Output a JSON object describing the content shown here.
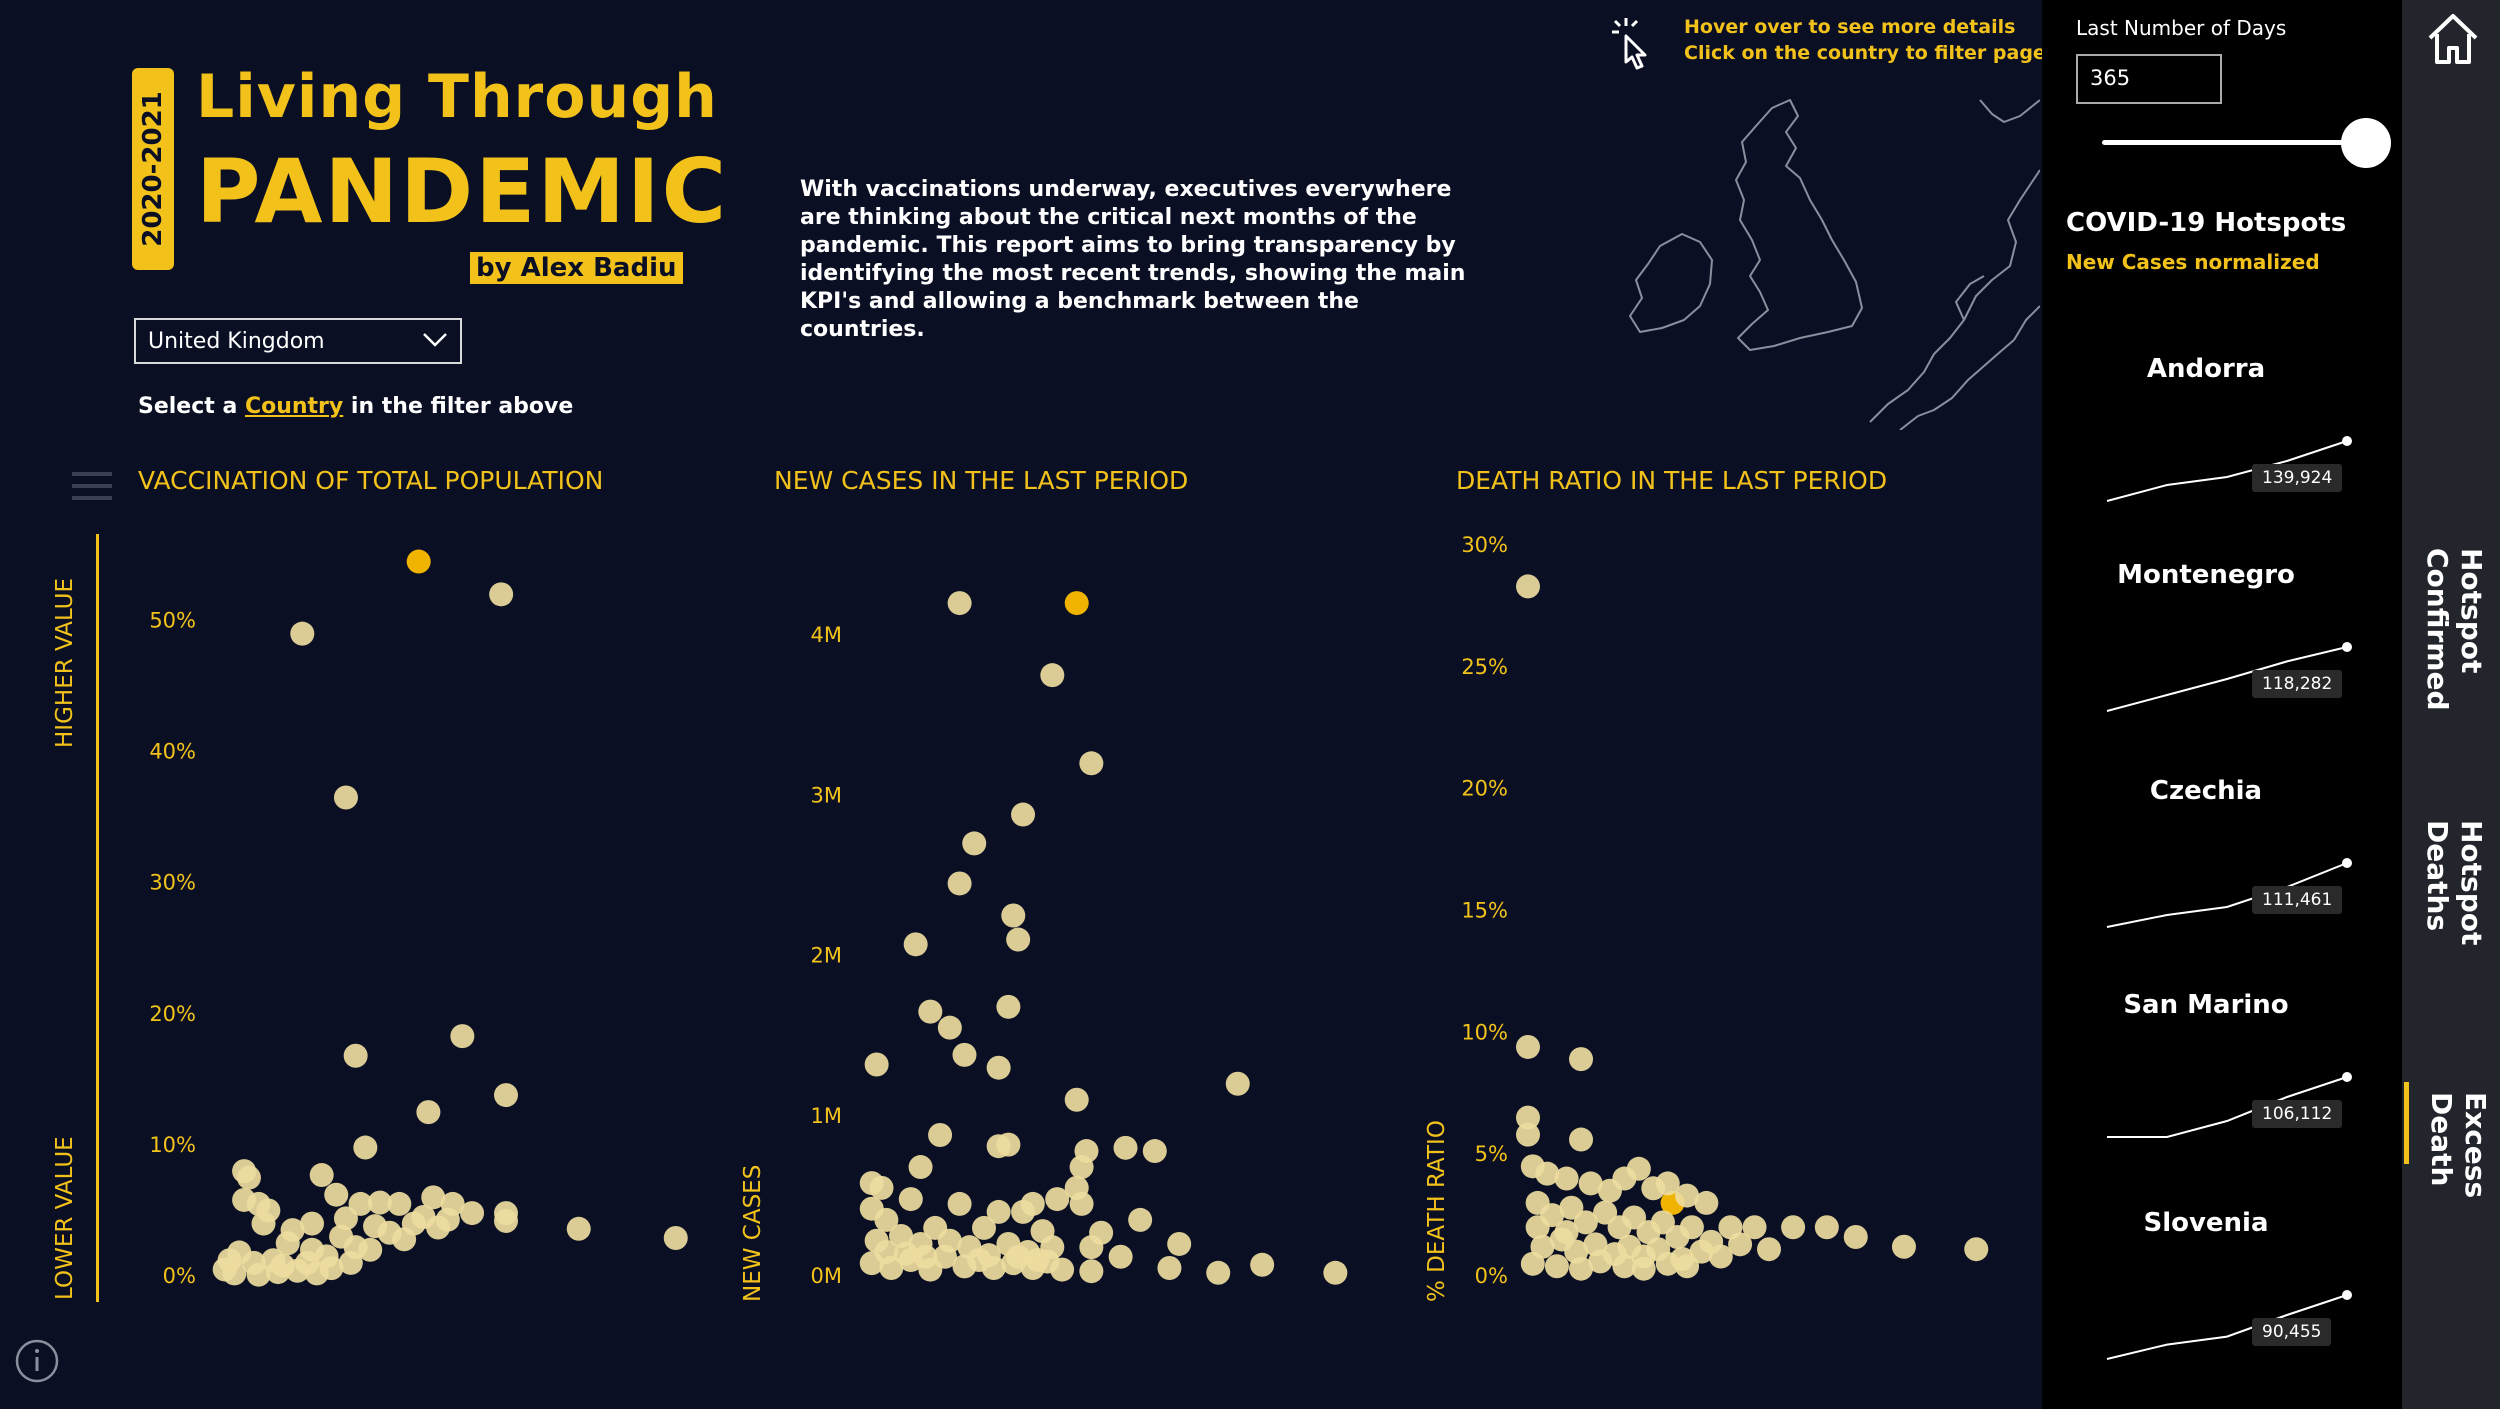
{
  "header": {
    "year": "2020-2021",
    "title_line1": "Living Through",
    "title_line2": "PANDEMIC",
    "author": "by Alex Badiu",
    "description": "With vaccinations underway, executives everywhere are thinking about the critical next months of the pandemic. This report aims to bring transparency by identifying the most recent trends, showing the main KPI's and allowing a benchmark between the countries.",
    "hover_line1": "Hover over to see more details",
    "hover_line2": "Click on the country to filter page"
  },
  "filter": {
    "country": "United Kingdom",
    "hint_prefix": "Select a ",
    "hint_link": "Country",
    "hint_suffix": " in the filter above"
  },
  "side_labels": {
    "higher": "HIGHER VALUE",
    "lower": "LOWER VALUE"
  },
  "colors": {
    "accent": "#f2c21b",
    "point": "#eddc9e",
    "highlight": "#f0b400",
    "background": "#0a0f24"
  },
  "icons": [
    "menu-icon",
    "info-icon",
    "hand-pointer-icon",
    "home-icon",
    "chevron-down-icon"
  ],
  "sidebar": {
    "days_label": "Last Number of Days",
    "days_value": "365",
    "slider_fraction": 1.0,
    "hotspots_title": "COVID-19 Hotspots",
    "hotspots_subtitle": "New Cases normalized",
    "items": [
      {
        "name": "Andorra",
        "value": "139,924",
        "trend": [
          0.25,
          0.45,
          0.55,
          0.75,
          1.0
        ]
      },
      {
        "name": "Montenegro",
        "value": "118,282",
        "trend": [
          0.2,
          0.4,
          0.6,
          0.82,
          1.0
        ]
      },
      {
        "name": "Czechia",
        "value": "111,461",
        "trend": [
          0.2,
          0.35,
          0.45,
          0.7,
          1.0
        ]
      },
      {
        "name": "San Marino",
        "value": "106,112",
        "trend": [
          0.25,
          0.25,
          0.45,
          0.75,
          1.0
        ]
      },
      {
        "name": "Slovenia",
        "value": "90,455",
        "trend": [
          0.2,
          0.38,
          0.48,
          0.75,
          1.0
        ]
      }
    ]
  },
  "nav": {
    "items": [
      "Hotspot Confirmed",
      "Hotspot Deaths",
      "Excess Death"
    ],
    "active": "Excess Death"
  },
  "chart_data": [
    {
      "type": "scatter",
      "title": "VACCINATION OF TOTAL POPULATION",
      "ylabel": "",
      "ylim": [
        0,
        0.55
      ],
      "yticks": [
        0,
        0.1,
        0.2,
        0.3,
        0.4,
        0.5
      ],
      "ytick_labels": [
        "0%",
        "10%",
        "20%",
        "30%",
        "40%",
        "50%"
      ],
      "xlim": [
        0,
        1
      ],
      "points": [
        [
          0.42,
          0.545,
          1
        ],
        [
          0.18,
          0.49,
          0
        ],
        [
          0.59,
          0.52,
          0
        ],
        [
          0.27,
          0.365,
          0
        ],
        [
          0.29,
          0.168,
          0
        ],
        [
          0.51,
          0.183,
          0
        ],
        [
          0.6,
          0.138,
          0
        ],
        [
          0.31,
          0.098,
          0
        ],
        [
          0.44,
          0.125,
          0
        ],
        [
          0.06,
          0.08,
          0
        ],
        [
          0.07,
          0.075,
          0
        ],
        [
          0.22,
          0.077,
          0
        ],
        [
          0.06,
          0.058,
          0
        ],
        [
          0.09,
          0.055,
          0
        ],
        [
          0.11,
          0.05,
          0
        ],
        [
          0.25,
          0.062,
          0
        ],
        [
          0.3,
          0.055,
          0
        ],
        [
          0.34,
          0.056,
          0
        ],
        [
          0.38,
          0.055,
          0
        ],
        [
          0.45,
          0.06,
          0
        ],
        [
          0.49,
          0.055,
          0
        ],
        [
          0.53,
          0.048,
          0
        ],
        [
          0.6,
          0.048,
          0
        ],
        [
          0.6,
          0.042,
          0
        ],
        [
          0.75,
          0.036,
          0
        ],
        [
          0.95,
          0.029,
          0
        ],
        [
          0.1,
          0.04,
          0
        ],
        [
          0.16,
          0.035,
          0
        ],
        [
          0.2,
          0.04,
          0
        ],
        [
          0.27,
          0.044,
          0
        ],
        [
          0.33,
          0.038,
          0
        ],
        [
          0.36,
          0.033,
          0
        ],
        [
          0.41,
          0.04,
          0
        ],
        [
          0.46,
          0.037,
          0
        ],
        [
          0.05,
          0.018,
          0
        ],
        [
          0.08,
          0.01,
          0
        ],
        [
          0.12,
          0.012,
          0
        ],
        [
          0.15,
          0.025,
          0
        ],
        [
          0.19,
          0.01,
          0
        ],
        [
          0.23,
          0.015,
          0
        ],
        [
          0.26,
          0.03,
          0
        ],
        [
          0.29,
          0.022,
          0
        ],
        [
          0.02,
          0.005,
          0
        ],
        [
          0.04,
          0.002,
          0
        ],
        [
          0.09,
          0.001,
          0
        ],
        [
          0.13,
          0.003,
          0
        ],
        [
          0.17,
          0.004,
          0
        ],
        [
          0.21,
          0.002,
          0
        ],
        [
          0.24,
          0.006,
          0
        ],
        [
          0.28,
          0.01,
          0
        ],
        [
          0.32,
          0.02,
          0
        ],
        [
          0.03,
          0.012,
          0
        ],
        [
          0.14,
          0.008,
          0
        ],
        [
          0.2,
          0.02,
          0
        ],
        [
          0.39,
          0.028,
          0
        ],
        [
          0.43,
          0.045,
          0
        ],
        [
          0.48,
          0.043,
          0
        ]
      ]
    },
    {
      "type": "scatter",
      "title": "NEW CASES IN THE LAST PERIOD",
      "ylabel": "NEW CASES",
      "ylim": [
        0,
        4500000
      ],
      "yticks": [
        0,
        1000000,
        2000000,
        3000000,
        4000000
      ],
      "ytick_labels": [
        "0M",
        "1M",
        "2M",
        "3M",
        "4M"
      ],
      "xlim": [
        0,
        1
      ],
      "points": [
        [
          0.2,
          4.2,
          0
        ],
        [
          0.44,
          4.2,
          1
        ],
        [
          0.39,
          3.75,
          0
        ],
        [
          0.47,
          3.2,
          0
        ],
        [
          0.33,
          2.88,
          0
        ],
        [
          0.23,
          2.7,
          0
        ],
        [
          0.2,
          2.45,
          0
        ],
        [
          0.31,
          2.25,
          0
        ],
        [
          0.32,
          2.1,
          0
        ],
        [
          0.11,
          2.07,
          0
        ],
        [
          0.14,
          1.65,
          0
        ],
        [
          0.18,
          1.55,
          0
        ],
        [
          0.3,
          1.68,
          0
        ],
        [
          0.21,
          1.38,
          0
        ],
        [
          0.28,
          1.3,
          0
        ],
        [
          0.03,
          1.32,
          0
        ],
        [
          0.44,
          1.1,
          0
        ],
        [
          0.77,
          1.2,
          0
        ],
        [
          0.16,
          0.88,
          0
        ],
        [
          0.28,
          0.81,
          0
        ],
        [
          0.3,
          0.82,
          0
        ],
        [
          0.46,
          0.78,
          0
        ],
        [
          0.54,
          0.8,
          0
        ],
        [
          0.6,
          0.78,
          0
        ],
        [
          0.12,
          0.68,
          0
        ],
        [
          0.45,
          0.68,
          0
        ],
        [
          0.02,
          0.58,
          0
        ],
        [
          0.04,
          0.55,
          0
        ],
        [
          0.44,
          0.55,
          0
        ],
        [
          0.1,
          0.48,
          0
        ],
        [
          0.2,
          0.45,
          0
        ],
        [
          0.35,
          0.45,
          0
        ],
        [
          0.4,
          0.48,
          0
        ],
        [
          0.45,
          0.45,
          0
        ],
        [
          0.02,
          0.42,
          0
        ],
        [
          0.28,
          0.4,
          0
        ],
        [
          0.33,
          0.4,
          0
        ],
        [
          0.57,
          0.35,
          0
        ],
        [
          0.05,
          0.35,
          0
        ],
        [
          0.15,
          0.3,
          0
        ],
        [
          0.25,
          0.3,
          0
        ],
        [
          0.37,
          0.28,
          0
        ],
        [
          0.49,
          0.27,
          0
        ],
        [
          0.65,
          0.2,
          0
        ],
        [
          0.03,
          0.22,
          0
        ],
        [
          0.08,
          0.25,
          0
        ],
        [
          0.12,
          0.2,
          0
        ],
        [
          0.18,
          0.22,
          0
        ],
        [
          0.22,
          0.18,
          0
        ],
        [
          0.3,
          0.2,
          0
        ],
        [
          0.34,
          0.15,
          0
        ],
        [
          0.39,
          0.18,
          0
        ],
        [
          0.47,
          0.18,
          0
        ],
        [
          0.53,
          0.12,
          0
        ],
        [
          0.63,
          0.05,
          0
        ],
        [
          0.82,
          0.07,
          0
        ],
        [
          0.73,
          0.02,
          0
        ],
        [
          0.97,
          0.02,
          0
        ],
        [
          0.02,
          0.08,
          0
        ],
        [
          0.06,
          0.05,
          0
        ],
        [
          0.1,
          0.1,
          0
        ],
        [
          0.14,
          0.04,
          0
        ],
        [
          0.17,
          0.12,
          0
        ],
        [
          0.21,
          0.06,
          0
        ],
        [
          0.24,
          0.1,
          0
        ],
        [
          0.27,
          0.05,
          0
        ],
        [
          0.31,
          0.08,
          0
        ],
        [
          0.35,
          0.05,
          0
        ],
        [
          0.38,
          0.09,
          0
        ],
        [
          0.41,
          0.04,
          0
        ],
        [
          0.47,
          0.03,
          0
        ],
        [
          0.05,
          0.15,
          0
        ],
        [
          0.09,
          0.14,
          0
        ],
        [
          0.13,
          0.12,
          0
        ],
        [
          0.26,
          0.13,
          0
        ],
        [
          0.32,
          0.12,
          0
        ],
        [
          0.36,
          0.1,
          0
        ]
      ],
      "unit_scale": 1000000
    },
    {
      "type": "scatter",
      "title": "DEATH RATIO IN THE LAST PERIOD",
      "ylabel": "% DEATH RATIO",
      "ylim": [
        0,
        0.3
      ],
      "yticks": [
        0,
        0.05,
        0.1,
        0.15,
        0.2,
        0.25,
        0.3
      ],
      "ytick_labels": [
        "0%",
        "5%",
        "10%",
        "15%",
        "20%",
        "25%",
        "30%"
      ],
      "xlim": [
        0,
        1
      ],
      "points": [
        [
          0.0,
          0.283,
          0
        ],
        [
          0.0,
          0.094,
          0
        ],
        [
          0.11,
          0.089,
          0
        ],
        [
          0.0,
          0.065,
          0
        ],
        [
          0.0,
          0.058,
          0
        ],
        [
          0.11,
          0.056,
          0
        ],
        [
          0.23,
          0.044,
          0
        ],
        [
          0.3,
          0.03,
          1
        ],
        [
          0.01,
          0.045,
          0
        ],
        [
          0.04,
          0.042,
          0
        ],
        [
          0.08,
          0.04,
          0
        ],
        [
          0.13,
          0.038,
          0
        ],
        [
          0.17,
          0.035,
          0
        ],
        [
          0.2,
          0.04,
          0
        ],
        [
          0.26,
          0.036,
          0
        ],
        [
          0.29,
          0.038,
          0
        ],
        [
          0.33,
          0.033,
          0
        ],
        [
          0.37,
          0.03,
          0
        ],
        [
          0.42,
          0.02,
          0
        ],
        [
          0.47,
          0.02,
          0
        ],
        [
          0.55,
          0.02,
          0
        ],
        [
          0.62,
          0.02,
          0
        ],
        [
          0.68,
          0.016,
          0
        ],
        [
          0.78,
          0.012,
          0
        ],
        [
          0.93,
          0.011,
          0
        ],
        [
          0.4,
          0.008,
          0
        ],
        [
          0.5,
          0.011,
          0
        ],
        [
          0.02,
          0.03,
          0
        ],
        [
          0.05,
          0.025,
          0
        ],
        [
          0.09,
          0.028,
          0
        ],
        [
          0.12,
          0.022,
          0
        ],
        [
          0.16,
          0.026,
          0
        ],
        [
          0.19,
          0.02,
          0
        ],
        [
          0.22,
          0.024,
          0
        ],
        [
          0.25,
          0.018,
          0
        ],
        [
          0.28,
          0.022,
          0
        ],
        [
          0.31,
          0.016,
          0
        ],
        [
          0.34,
          0.02,
          0
        ],
        [
          0.38,
          0.014,
          0
        ],
        [
          0.44,
          0.013,
          0
        ],
        [
          0.03,
          0.012,
          0
        ],
        [
          0.07,
          0.015,
          0
        ],
        [
          0.1,
          0.01,
          0
        ],
        [
          0.14,
          0.013,
          0
        ],
        [
          0.18,
          0.009,
          0
        ],
        [
          0.21,
          0.012,
          0
        ],
        [
          0.24,
          0.008,
          0
        ],
        [
          0.27,
          0.011,
          0
        ],
        [
          0.32,
          0.007,
          0
        ],
        [
          0.36,
          0.01,
          0
        ],
        [
          0.01,
          0.005,
          0
        ],
        [
          0.06,
          0.004,
          0
        ],
        [
          0.11,
          0.003,
          0
        ],
        [
          0.15,
          0.006,
          0
        ],
        [
          0.2,
          0.004,
          0
        ],
        [
          0.24,
          0.003,
          0
        ],
        [
          0.29,
          0.005,
          0
        ],
        [
          0.33,
          0.004,
          0
        ],
        [
          0.02,
          0.02,
          0
        ],
        [
          0.08,
          0.018,
          0
        ]
      ]
    }
  ]
}
